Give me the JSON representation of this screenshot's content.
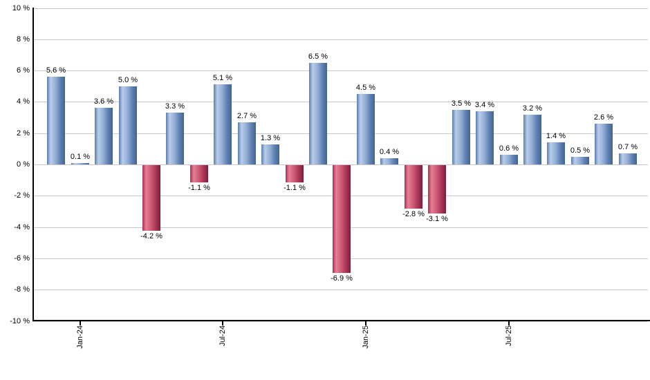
{
  "chart": {
    "background_color": "#ffffff",
    "axis_color": "#000000",
    "grid_color": "#c8c8c8",
    "text_color": "#000000",
    "positive_bar_color": "#6f94c9",
    "negative_bar_color": "#c34a67"
  },
  "chart_data": {
    "type": "bar",
    "title": "",
    "xlabel": "",
    "ylabel": "",
    "ylim": [
      -10,
      10
    ],
    "y_tick_step": 2,
    "grid": true,
    "legend_position": "none",
    "y_ticks": [
      {
        "value": 10,
        "label": "10 %"
      },
      {
        "value": 8,
        "label": "8 %"
      },
      {
        "value": 6,
        "label": "6 %"
      },
      {
        "value": 4,
        "label": "4 %"
      },
      {
        "value": 2,
        "label": "2 %"
      },
      {
        "value": 0,
        "label": "0 %"
      },
      {
        "value": -2,
        "label": "-2 %"
      },
      {
        "value": -4,
        "label": "-4 %"
      },
      {
        "value": -6,
        "label": "-6 %"
      },
      {
        "value": -8,
        "label": "-8 %"
      },
      {
        "value": -10,
        "label": "-10 %"
      }
    ],
    "x_ticks": [
      {
        "bar_index": 1,
        "label": "Jan-24"
      },
      {
        "bar_index": 7,
        "label": "Jul-24"
      },
      {
        "bar_index": 13,
        "label": "Jan-25"
      },
      {
        "bar_index": 19,
        "label": "Jul-25"
      }
    ],
    "bars": [
      {
        "value": 5.6,
        "label": "5.6 %"
      },
      {
        "value": 0.1,
        "label": "0.1 %"
      },
      {
        "value": 3.6,
        "label": "3.6 %"
      },
      {
        "value": 5.0,
        "label": "5.0 %"
      },
      {
        "value": -4.2,
        "label": "-4.2 %"
      },
      {
        "value": 3.3,
        "label": "3.3 %"
      },
      {
        "value": -1.1,
        "label": "-1.1 %"
      },
      {
        "value": 5.1,
        "label": "5.1 %"
      },
      {
        "value": 2.7,
        "label": "2.7 %"
      },
      {
        "value": 1.3,
        "label": "1.3 %"
      },
      {
        "value": -1.1,
        "label": "-1.1 %"
      },
      {
        "value": 6.5,
        "label": "6.5 %"
      },
      {
        "value": -6.9,
        "label": "-6.9 %"
      },
      {
        "value": 4.5,
        "label": "4.5 %"
      },
      {
        "value": 0.4,
        "label": "0.4 %"
      },
      {
        "value": -2.8,
        "label": "-2.8 %"
      },
      {
        "value": -3.1,
        "label": "-3.1 %"
      },
      {
        "value": 3.5,
        "label": "3.5 %"
      },
      {
        "value": 3.4,
        "label": "3.4 %"
      },
      {
        "value": 0.6,
        "label": "0.6 %"
      },
      {
        "value": 3.2,
        "label": "3.2 %"
      },
      {
        "value": 1.4,
        "label": "1.4 %"
      },
      {
        "value": 0.5,
        "label": "0.5 %"
      },
      {
        "value": 2.6,
        "label": "2.6 %"
      },
      {
        "value": 0.7,
        "label": "0.7 %"
      }
    ]
  }
}
